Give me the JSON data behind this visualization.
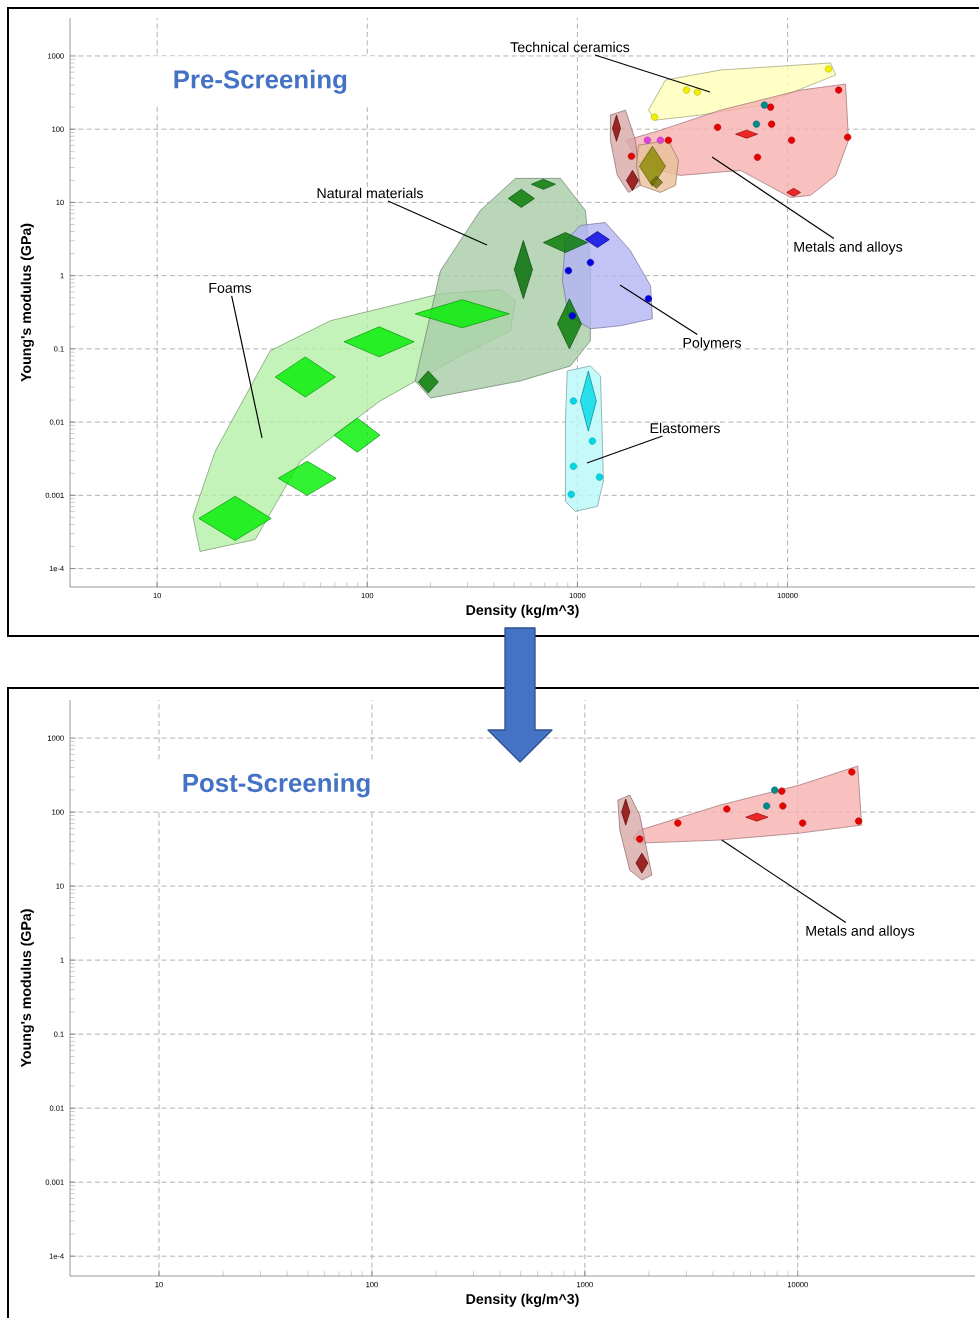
{
  "chart_data": [
    {
      "type": "scatter",
      "title": "Pre-Screening",
      "xlabel": "Density (kg/m^3)",
      "ylabel": "Young's modulus (GPa)",
      "log": "xy",
      "grid": true,
      "xlim": [
        3.85,
        78000
      ],
      "ylim": [
        5.6e-05,
        3300
      ],
      "xticks": [
        10,
        100,
        1000,
        10000
      ],
      "yticks": [
        {
          "value": 0.0001,
          "label": "1e-4"
        },
        0.001,
        0.01,
        0.1,
        1,
        10,
        100,
        1000
      ],
      "series": [
        {
          "type": "area",
          "color": "#b4f0a8",
          "x": [
            14.8,
            18.9,
            34.5,
            66.7,
            223,
            430,
            507,
            480,
            277,
            115,
            48,
            29.3,
            16.0
          ],
          "values": [
            0.000515,
            0.004,
            0.094,
            0.242,
            0.566,
            0.643,
            0.455,
            0.177,
            0.0802,
            0.0194,
            0.00292,
            0.000249,
            0.000171
          ]
        },
        {
          "type": "area",
          "color": "#a8cca8",
          "x": [
            169,
            223,
            345,
            507,
            830,
            1091,
            1153,
            1153,
            927,
            535,
            200
          ],
          "values": [
            0.0365,
            1.17,
            7.76,
            21.3,
            21.3,
            7.76,
            1.6,
            0.129,
            0.0585,
            0.0365,
            0.0213
          ]
        },
        {
          "type": "area",
          "color": "#b4b4f4",
          "x": [
            877,
            1033,
            1358,
            1786,
            2228,
            2275,
            1603,
            1153,
            906,
            849
          ],
          "values": [
            3.01,
            4.84,
            5.32,
            2.2,
            0.73,
            0.258,
            0.207,
            0.188,
            0.283,
            0.855
          ]
        },
        {
          "type": "area",
          "color": "#b8f8f8",
          "x": [
            895,
            1153,
            1288,
            1330,
            1245,
            977,
            877,
            877
          ],
          "values": [
            0.05,
            0.0585,
            0.0427,
            0.00156,
            0.000706,
            0.000604,
            0.000828,
            0.0103
          ]
        },
        {
          "type": "area",
          "color": "#ffffb8",
          "x": [
            2178,
            2624,
            4797,
            16030,
            16940,
            7430,
            3855,
            2350
          ],
          "values": [
            182,
            469,
            643,
            802,
            550,
            213,
            156,
            133
          ]
        },
        {
          "type": "area",
          "color": "#f8b0b0",
          "x": [
            1710,
            2483,
            4797,
            11530,
            18880,
            19500,
            16940,
            12880,
            10330,
            5970,
            3090,
            1995
          ],
          "values": [
            70.6,
            96.8,
            182,
            342,
            413,
            70.6,
            23.4,
            12.5,
            11.7,
            27.4,
            23.4,
            32.1
          ]
        },
        {
          "type": "area",
          "color": "#d8a8a8",
          "x": [
            1435,
            1694,
            1888,
            1995,
            1750,
            1549,
            1435
          ],
          "values": [
            156,
            182,
            70.6,
            17.1,
            13.7,
            23.4,
            70.6
          ]
        },
        {
          "type": "area",
          "color": "#e8c098",
          "x": [
            1950,
            2710,
            3027,
            2931,
            2483,
            1995,
            1910
          ],
          "values": [
            60.4,
            70.6,
            37.6,
            17.1,
            13.7,
            17.1,
            32.1
          ]
        },
        {
          "type": "area",
          "color": "#00ee00",
          "x": [
            15.8,
            23.5,
            34.9,
            23.5
          ],
          "values": [
            0.000484,
            0.00097,
            0.000484,
            0.000242
          ]
        },
        {
          "type": "area",
          "color": "#00ee00",
          "x": [
            37.7,
            51.8,
            71.1,
            51.8
          ],
          "values": [
            0.00171,
            0.00292,
            0.00171,
            0.001
          ]
        },
        {
          "type": "area",
          "color": "#00ee00",
          "x": [
            69.5,
            89.6,
            115,
            89.6
          ],
          "values": [
            0.00664,
            0.01135,
            0.00664,
            0.00388
          ]
        },
        {
          "type": "area",
          "color": "#00ee00",
          "x": [
            36.5,
            50.7,
            70.5,
            50.7
          ],
          "values": [
            0.0413,
            0.0776,
            0.0413,
            0.022
          ]
        },
        {
          "type": "area",
          "color": "#00ee00",
          "x": [
            77.6,
            114,
            167,
            114
          ],
          "values": [
            0.125,
            0.2,
            0.125,
            0.0778
          ]
        },
        {
          "type": "area",
          "color": "#00ee00",
          "x": [
            169,
            283,
            474,
            283
          ],
          "values": [
            0.301,
            0.469,
            0.301,
            0.194
          ]
        },
        {
          "type": "area",
          "color": "#007800",
          "x": [
            175,
            195,
            218,
            195
          ],
          "values": [
            0.0353,
            0.05,
            0.0353,
            0.0249
          ]
        },
        {
          "type": "area",
          "color": "#007800",
          "x": [
            469,
            541,
            624,
            541
          ],
          "values": [
            11.3,
            15.1,
            11.3,
            8.55
          ]
        },
        {
          "type": "area",
          "color": "#007800",
          "x": [
            604,
            689,
            785,
            689
          ],
          "values": [
            17.7,
            20.7,
            17.7,
            15.1
          ]
        },
        {
          "type": "area",
          "color": "#006a00",
          "x": [
            501,
            553,
            611,
            553
          ],
          "values": [
            1.21,
            3.01,
            1.21,
            0.484
          ]
        },
        {
          "type": "area",
          "color": "#007800",
          "x": [
            689,
            877,
            1117,
            877
          ],
          "values": [
            2.83,
            3.88,
            2.83,
            2.07
          ]
        },
        {
          "type": "area",
          "color": "#007800",
          "x": [
            804,
            916,
            1045,
            916
          ],
          "values": [
            0.22,
            0.483,
            0.22,
            0.1
          ]
        },
        {
          "type": "area",
          "color": "#0000e0",
          "x": [
            1091,
            1245,
            1419,
            1245
          ],
          "values": [
            3.11,
            4.01,
            3.11,
            2.42
          ]
        },
        {
          "type": "area",
          "color": "#00d8e8",
          "x": [
            1033,
            1127,
            1230,
            1127
          ],
          "values": [
            0.0194,
            0.05,
            0.0194,
            0.00753
          ]
        },
        {
          "type": "area",
          "color": "#e80000",
          "x": [
            5662,
            6383,
            7194,
            6383
          ],
          "values": [
            85.5,
            97,
            85.5,
            75.3
          ]
        },
        {
          "type": "area",
          "color": "#e80000",
          "x": [
            9910,
            10690,
            11530,
            10690
          ],
          "values": [
            13.7,
            15.6,
            13.7,
            12.1
          ]
        },
        {
          "type": "area",
          "color": "#8b0000",
          "x": [
            1469,
            1535,
            1603,
            1535
          ],
          "values": [
            103,
            156,
            103,
            68.5
          ]
        },
        {
          "type": "area",
          "color": "#8b0000",
          "x": [
            1710,
            1828,
            1954,
            1828
          ],
          "values": [
            20,
            27.4,
            20,
            14.6
          ]
        },
        {
          "type": "area",
          "color": "#8a8a00",
          "x": [
            1972,
            2275,
            2624,
            2275
          ],
          "values": [
            31.1,
            58.5,
            31.1,
            16.6
          ]
        },
        {
          "type": "area",
          "color": "#6e6e00",
          "x": [
            2223,
            2377,
            2541,
            2377
          ],
          "values": [
            18.8,
            22.7,
            18.8,
            15.6
          ]
        },
        {
          "color": "#0000e0",
          "marker": "circle",
          "x": [
            1153,
            906,
            946,
            2178
          ],
          "values": [
            1.51,
            1.17,
            0.283,
            0.484
          ]
        },
        {
          "color": "#00d8e8",
          "marker": "circle",
          "x": [
            957,
            957,
            935,
            1274,
            1178
          ],
          "values": [
            0.0194,
            0.00249,
            0.00103,
            0.00177,
            0.0055
          ]
        },
        {
          "color": "#f0f000",
          "marker": "circle",
          "x": [
            15670,
            3724,
            3304,
            2328
          ],
          "values": [
            664,
            321,
            342,
            146
          ]
        },
        {
          "color": "#e80000",
          "marker": "circle",
          "x": [
            17500,
            8300,
            4645,
            8395,
            10450,
            19320,
            7194,
            2710,
            1807
          ],
          "values": [
            342,
            200,
            106,
            117,
            70.6,
            77.6,
            41.3,
            70.6,
            42.7
          ]
        },
        {
          "color": "#008b8b",
          "marker": "circle",
          "x": [
            7112,
            7762
          ],
          "values": [
            117,
            213
          ]
        },
        {
          "color": "#e040e0",
          "marker": "circle",
          "x": [
            2153,
            2483
          ],
          "values": [
            70.6,
            70.6
          ]
        }
      ],
      "annotations": [
        "Technical ceramics",
        "Natural materials",
        "Foams",
        "Metals and alloys",
        "Polymers",
        "Elastomers"
      ]
    },
    {
      "type": "scatter",
      "title": "Post-Screening",
      "xlabel": "Density (kg/m^3)",
      "ylabel": "Young's modulus (GPa)",
      "log": "xy",
      "grid": true,
      "xlim": [
        3.82,
        68000
      ],
      "ylim": [
        5.4e-05,
        3270
      ],
      "xticks": [
        10,
        100,
        1000,
        10000
      ],
      "yticks": [
        {
          "value": 0.0001,
          "label": "1e-4"
        },
        0.001,
        0.01,
        0.1,
        1,
        10,
        100,
        1000
      ],
      "series": [
        {
          "type": "area",
          "color": "#f8b0b0",
          "x": [
            1679,
            1811,
            4305,
            10210,
            19140,
            19950,
            10210,
            4305,
            1811
          ],
          "values": [
            44.6,
            57.1,
            124,
            232,
            419,
            66.7,
            52,
            41.9,
            38.1
          ]
        },
        {
          "type": "area",
          "color": "#d8a8a8",
          "x": [
            1429,
            1626,
            1811,
            2065,
            1854,
            1626,
            1459
          ],
          "values": [
            145,
            170,
            91,
            14.1,
            12.1,
            16.4,
            57.1
          ]
        },
        {
          "type": "area",
          "color": "#e80000",
          "x": [
            5702,
            6427,
            7244,
            6427
          ],
          "values": [
            85.5,
            96.8,
            85.5,
            75.5
          ]
        },
        {
          "type": "area",
          "color": "#8b0000",
          "x": [
            1489,
            1556,
            1626,
            1556
          ],
          "values": [
            100,
            150,
            100,
            66.7
          ]
        },
        {
          "type": "area",
          "color": "#8b0000",
          "x": [
            1738,
            1854,
            1977,
            1854
          ],
          "values": [
            20.5,
            27.9,
            20.5,
            15
          ]
        },
        {
          "color": "#e80000",
          "marker": "circle",
          "x": [
            17950,
            8414,
            4645,
            8511,
            10540,
            19320,
            2735,
            1811
          ],
          "values": [
            348,
            192,
            110,
            121,
            71,
            75.5,
            71,
            43.2
          ]
        },
        {
          "color": "#008b8b",
          "marker": "circle",
          "x": [
            7145,
            7798
          ],
          "values": [
            121,
            198
          ]
        }
      ],
      "annotations": [
        {
          "text": "Metals and alloys",
          "x": 4395,
          "y": 41.9
        }
      ]
    }
  ]
}
